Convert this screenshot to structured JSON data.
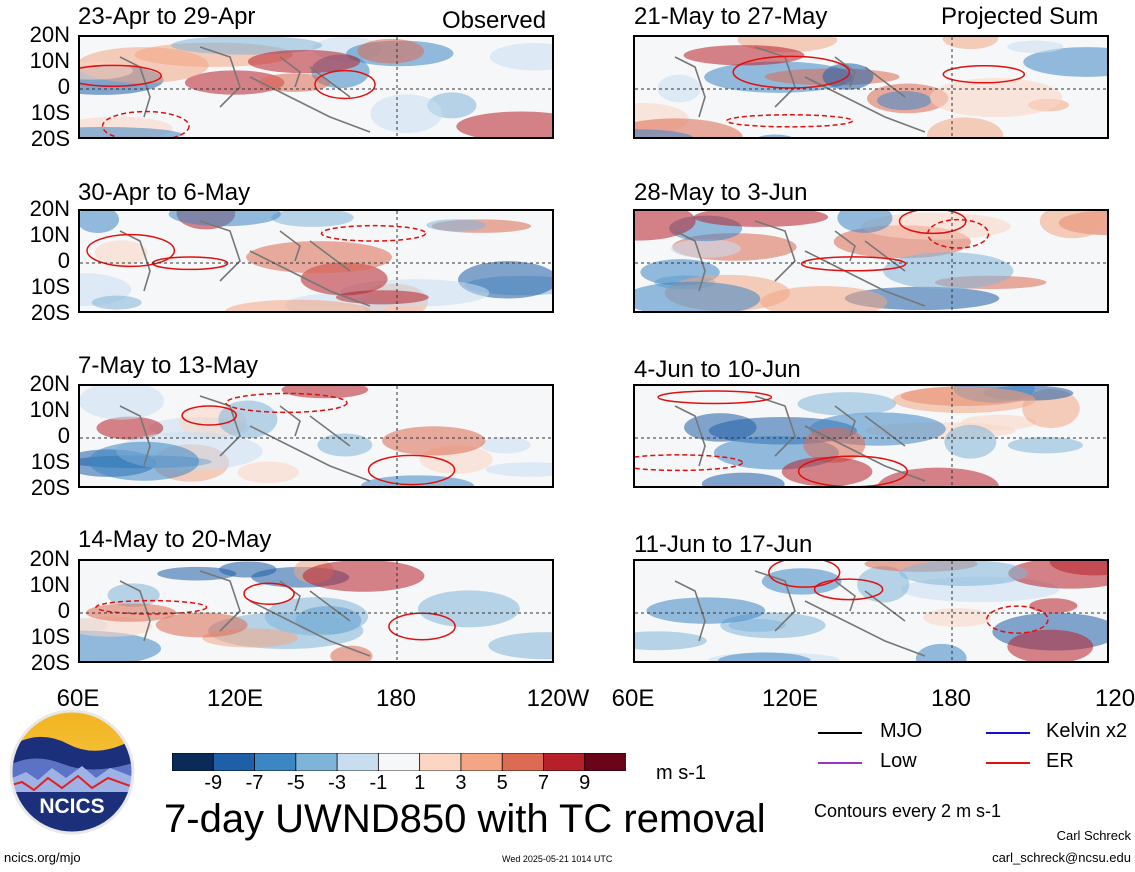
{
  "headers": {
    "left": "Observed",
    "right": "Projected Sum"
  },
  "panels_left": [
    {
      "label": "23-Apr to 29-Apr"
    },
    {
      "label": "30-Apr to 6-May"
    },
    {
      "label": "7-May to 13-May"
    },
    {
      "label": "14-May to 20-May"
    }
  ],
  "panels_right": [
    {
      "label": "21-May to 27-May"
    },
    {
      "label": "28-May to 3-Jun"
    },
    {
      "label": "4-Jun to 10-Jun"
    },
    {
      "label": "11-Jun to 17-Jun"
    }
  ],
  "lat_labels": [
    "20N",
    "10N",
    "0",
    "10S",
    "20S"
  ],
  "lon_labels": [
    "60E",
    "120E",
    "180",
    "120W"
  ],
  "colorbar": {
    "ticks": [
      "-9",
      "-7",
      "-5",
      "-3",
      "-1",
      "1",
      "3",
      "5",
      "7",
      "9"
    ],
    "colors": [
      "#0a2a5a",
      "#1f5fa8",
      "#3d86c4",
      "#7fb4d9",
      "#c8def0",
      "#f6f7f8",
      "#fbd6c3",
      "#f3a584",
      "#dd6a52",
      "#b6202a",
      "#6a0418"
    ],
    "units": "m s-1"
  },
  "main_title": "7-day UWND850 with TC removal",
  "legend": {
    "items": [
      {
        "label": "MJO",
        "color": "#000000"
      },
      {
        "label": "Kelvin x2",
        "color": "#1010d0"
      },
      {
        "label": "Low",
        "color": "#9933cc"
      },
      {
        "label": "ER",
        "color": "#e01010"
      }
    ],
    "contour_note": "Contours every 2 m s-1"
  },
  "logo": {
    "text": "NCICS"
  },
  "footer": {
    "left": "ncics.org/mjo",
    "center": "Wed 2025-05-21 1014 UTC",
    "author": "Carl Schreck",
    "email": "carl_schreck@ncsu.edu"
  }
}
